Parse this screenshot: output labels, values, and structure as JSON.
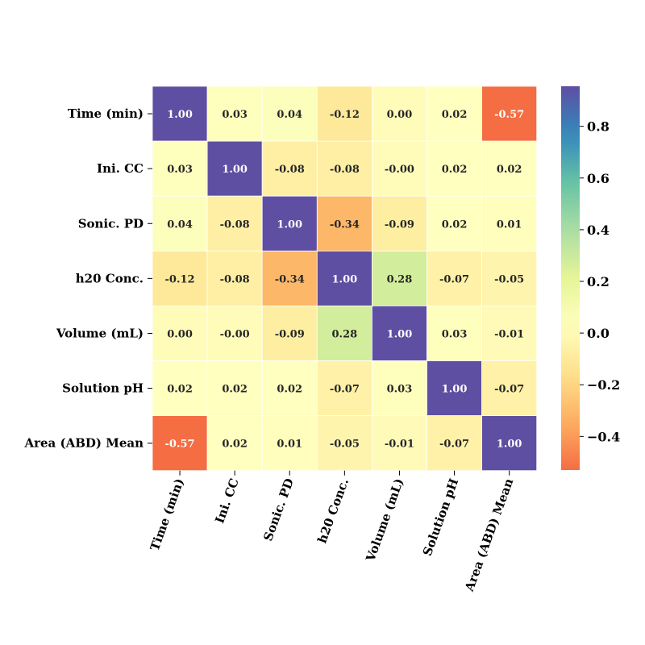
{
  "chart_data": {
    "type": "heatmap",
    "title": "",
    "xlabel": "",
    "ylabel": "",
    "x_categories": [
      "Time (min)",
      "Ini. CC",
      "Sonic. PD",
      "h20 Conc.",
      "Volume (mL)",
      "Solution pH",
      "Area (ABD) Mean"
    ],
    "y_categories": [
      "Time (min)",
      "Ini. CC",
      "Sonic. PD",
      "h20 Conc.",
      "Volume (mL)",
      "Solution pH",
      "Area (ABD) Mean"
    ],
    "values": [
      [
        1.0,
        0.03,
        0.04,
        -0.12,
        0.0,
        0.02,
        -0.57
      ],
      [
        0.03,
        1.0,
        -0.08,
        -0.08,
        -0.0,
        0.02,
        0.02
      ],
      [
        0.04,
        -0.08,
        1.0,
        -0.34,
        -0.09,
        0.02,
        0.01
      ],
      [
        -0.12,
        -0.08,
        -0.34,
        1.0,
        0.28,
        -0.07,
        -0.05
      ],
      [
        0.0,
        -0.0,
        -0.09,
        0.28,
        1.0,
        0.03,
        -0.01
      ],
      [
        0.02,
        0.02,
        0.02,
        -0.07,
        0.03,
        1.0,
        -0.07
      ],
      [
        -0.57,
        0.02,
        0.01,
        -0.05,
        -0.01,
        -0.07,
        1.0
      ]
    ],
    "value_labels": [
      [
        "1.00",
        "0.03",
        "0.04",
        "-0.12",
        "0.00",
        "0.02",
        "-0.57"
      ],
      [
        "0.03",
        "1.00",
        "-0.08",
        "-0.08",
        "-0.00",
        "0.02",
        "0.02"
      ],
      [
        "0.04",
        "-0.08",
        "1.00",
        "-0.34",
        "-0.09",
        "0.02",
        "0.01"
      ],
      [
        "-0.12",
        "-0.08",
        "-0.34",
        "1.00",
        "0.28",
        "-0.07",
        "-0.05"
      ],
      [
        "0.00",
        "-0.00",
        "-0.09",
        "0.28",
        "1.00",
        "0.03",
        "-0.01"
      ],
      [
        "0.02",
        "0.02",
        "0.02",
        "-0.07",
        "0.03",
        "1.00",
        "-0.07"
      ],
      [
        "-0.57",
        "0.02",
        "0.01",
        "-0.05",
        "-0.01",
        "-0.07",
        "1.00"
      ]
    ],
    "colormap": "Spectral",
    "color_range": [
      -0.57,
      1.0
    ],
    "colorbar_ticks": [
      0.8,
      0.6,
      0.4,
      0.2,
      0.0,
      -0.2,
      -0.4
    ],
    "colorbar_tick_labels": [
      "0.8",
      "0.6",
      "0.4",
      "0.2",
      "0.0",
      "−0.2",
      "−0.4"
    ],
    "x_tick_rotation_deg": 70,
    "cell_border_color": "#ffffff",
    "grid": false
  }
}
